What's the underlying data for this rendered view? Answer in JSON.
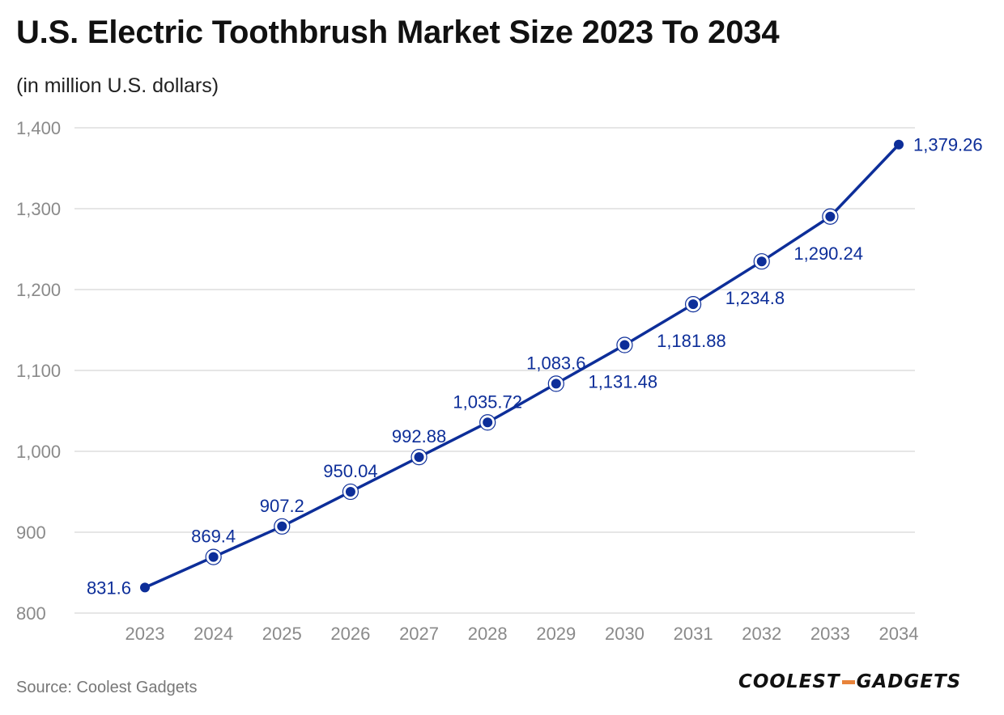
{
  "header": {
    "title": "U.S. Electric Toothbrush Market Size 2023 To 2034",
    "subtitle": "(in million U.S. dollars)"
  },
  "footer": {
    "source": "Source: Coolest Gadgets",
    "logo_left": "COOLEST",
    "logo_right": "GADGETS"
  },
  "colors": {
    "series": "#0d2e99",
    "grid": "#dddddd",
    "logo_accent": "#e8833a"
  },
  "chart_data": {
    "type": "line",
    "title": "U.S. Electric Toothbrush Market Size 2023 To 2034",
    "subtitle": "(in million U.S. dollars)",
    "xlabel": "",
    "ylabel": "",
    "categories": [
      "2023",
      "2024",
      "2025",
      "2026",
      "2027",
      "2028",
      "2029",
      "2030",
      "2031",
      "2032",
      "2033",
      "2034"
    ],
    "series": [
      {
        "name": "Market Size",
        "values": [
          831.6,
          869.4,
          907.2,
          950.04,
          992.88,
          1035.72,
          1083.6,
          1131.48,
          1181.88,
          1234.8,
          1290.24,
          1379.26
        ]
      }
    ],
    "data_labels": [
      "831.6",
      "869.4",
      "907.2",
      "950.04",
      "992.88",
      "1,035.72",
      "1,083.6",
      "1,131.48",
      "1,181.88",
      "1,234.8",
      "1,290.24",
      "1,379.26"
    ],
    "label_positions": [
      "left",
      "above",
      "above",
      "above",
      "above",
      "above",
      "above",
      "below-right",
      "below-right",
      "below-right",
      "below-right",
      "right"
    ],
    "ylim": [
      800,
      1400
    ],
    "yticks": [
      800,
      900,
      1000,
      1100,
      1200,
      1300,
      1400
    ],
    "ytick_labels": [
      "800",
      "900",
      "1,000",
      "1,100",
      "1,200",
      "1,300",
      "1,400"
    ],
    "grid": true,
    "legend": "none"
  }
}
